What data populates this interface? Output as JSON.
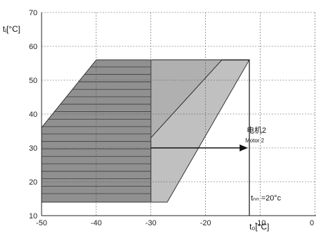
{
  "chart_data": {
    "type": "area",
    "x_ticks": [
      "-50",
      "-40",
      "-30",
      "-20",
      "-10",
      "0"
    ],
    "y_ticks": [
      "10",
      "20",
      "30",
      "40",
      "50",
      "60",
      "70"
    ],
    "xlim": [
      -50,
      0
    ],
    "ylim": [
      10,
      70
    ],
    "xlabel": "t₀[°C]",
    "ylabel": "tᵢ[°C]",
    "grid": true,
    "regions": [
      {
        "fill": "#909090",
        "outline_points": [
          [
            -50,
            36
          ],
          [
            -40,
            56
          ],
          [
            -17,
            56
          ],
          [
            -30,
            33
          ],
          [
            -30,
            14
          ],
          [
            -50,
            14
          ]
        ],
        "hatched_subregion": [
          [
            -50,
            36
          ],
          [
            -40,
            56
          ],
          [
            -30,
            56
          ],
          [
            -30,
            14
          ],
          [
            -50,
            14
          ]
        ],
        "hatch_y_values": [
          16.5,
          18.7,
          20.9,
          23.1,
          25.3,
          27.5,
          29.7,
          31.9,
          34.1,
          36.3,
          38.5,
          40.7,
          42.9,
          45.1,
          47.3,
          49.5,
          51.7,
          53.9
        ]
      },
      {
        "fill": "#b0b0b0",
        "outline_points": [
          [
            -30,
            56
          ],
          [
            -17,
            56
          ],
          [
            -30,
            33
          ],
          [
            -30,
            56
          ]
        ]
      },
      {
        "fill": "#c0c0c0",
        "outline_points": [
          [
            -30,
            33
          ],
          [
            -17,
            56
          ],
          [
            -12,
            56
          ],
          [
            -27,
            14
          ],
          [
            -30,
            14
          ]
        ]
      }
    ],
    "boundary_line": {
      "x": -12,
      "y_from": 10,
      "y_to": 56
    },
    "arrow": {
      "x_from": -30,
      "x_to": -12,
      "y": 30
    },
    "annotations": {
      "motor_cn": "电机2",
      "motor_en": "Motor 2",
      "t_cn": "tₙₙ =20°c"
    }
  }
}
